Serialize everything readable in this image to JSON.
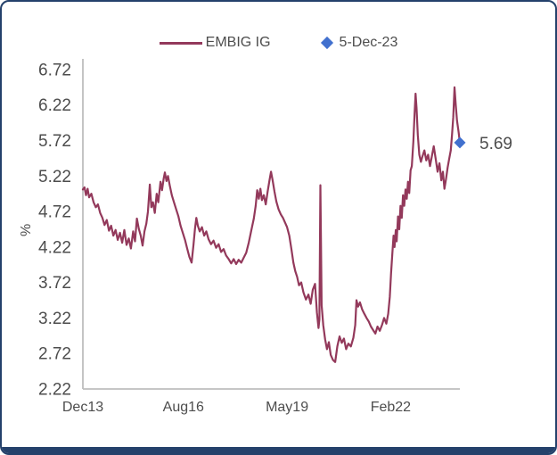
{
  "frame": {
    "border_color": "#24416B",
    "bottom_bar_color": "#24416B"
  },
  "legend": {
    "items": [
      {
        "label": "EMBIG IG",
        "swatch": "line",
        "color": "#93395B"
      },
      {
        "label": "5-Dec-23",
        "swatch": "diamond",
        "color": "#4170CE"
      }
    ]
  },
  "colors": {
    "series_line": "#93395B",
    "marker_diamond": "#4170CE",
    "axis_line": "#BEBEBE",
    "tick_text": "#4d4d4d"
  },
  "chart_data": {
    "type": "line",
    "title": "",
    "xlabel": "",
    "ylabel": "%",
    "legend_position": "top-center",
    "grid": false,
    "axis": {
      "y_min": 2.22,
      "y_max": 6.87,
      "x_min_month": 0,
      "x_max_month": 120
    },
    "y_ticks": [
      {
        "value": 6.72,
        "label": "6.72"
      },
      {
        "value": 6.22,
        "label": "6.22"
      },
      {
        "value": 5.72,
        "label": "5.72"
      },
      {
        "value": 5.22,
        "label": "5.22"
      },
      {
        "value": 4.72,
        "label": "4.72"
      },
      {
        "value": 4.22,
        "label": "4.22"
      },
      {
        "value": 3.72,
        "label": "3.72"
      },
      {
        "value": 3.22,
        "label": "3.22"
      },
      {
        "value": 2.72,
        "label": "2.72"
      },
      {
        "value": 2.22,
        "label": "2.22"
      }
    ],
    "x_ticks": [
      {
        "month": 0,
        "label": "Dec13"
      },
      {
        "month": 32,
        "label": "Aug16"
      },
      {
        "month": 65,
        "label": "May19"
      },
      {
        "month": 98,
        "label": "Feb22"
      }
    ],
    "series": [
      {
        "name": "EMBIG IG",
        "unit": "%",
        "color": "#93395B",
        "x_unit": "months_since_Dec13",
        "points": [
          [
            0,
            5.03
          ],
          [
            0.5,
            5.06
          ],
          [
            1,
            4.95
          ],
          [
            1.5,
            5.04
          ],
          [
            2,
            4.92
          ],
          [
            2.7,
            4.97
          ],
          [
            3.4,
            4.85
          ],
          [
            4.1,
            4.78
          ],
          [
            4.8,
            4.82
          ],
          [
            5.5,
            4.7
          ],
          [
            6.2,
            4.63
          ],
          [
            6.9,
            4.53
          ],
          [
            7.6,
            4.6
          ],
          [
            8.3,
            4.45
          ],
          [
            9,
            4.52
          ],
          [
            9.7,
            4.38
          ],
          [
            10.4,
            4.46
          ],
          [
            11.1,
            4.32
          ],
          [
            11.8,
            4.42
          ],
          [
            12.5,
            4.28
          ],
          [
            13.2,
            4.46
          ],
          [
            13.9,
            4.25
          ],
          [
            14.6,
            4.34
          ],
          [
            15.3,
            4.2
          ],
          [
            16,
            4.44
          ],
          [
            16.6,
            4.3
          ],
          [
            17.2,
            4.62
          ],
          [
            17.8,
            4.48
          ],
          [
            18.4,
            4.38
          ],
          [
            19,
            4.24
          ],
          [
            19.6,
            4.44
          ],
          [
            20.2,
            4.55
          ],
          [
            20.7,
            4.72
          ],
          [
            21.3,
            5.1
          ],
          [
            21.8,
            4.78
          ],
          [
            22.3,
            4.85
          ],
          [
            22.9,
            4.7
          ],
          [
            23.5,
            4.97
          ],
          [
            24,
            4.85
          ],
          [
            24.7,
            5.14
          ],
          [
            25.2,
            5.02
          ],
          [
            25.7,
            5.18
          ],
          [
            26.1,
            5.27
          ],
          [
            26.6,
            5.15
          ],
          [
            27.1,
            5.22
          ],
          [
            27.7,
            5.08
          ],
          [
            28.3,
            4.95
          ],
          [
            29,
            4.85
          ],
          [
            29.7,
            4.75
          ],
          [
            30.4,
            4.65
          ],
          [
            31.1,
            4.52
          ],
          [
            31.8,
            4.42
          ],
          [
            32.5,
            4.32
          ],
          [
            33.2,
            4.2
          ],
          [
            33.9,
            4.08
          ],
          [
            34.6,
            4.0
          ],
          [
            35.2,
            4.25
          ],
          [
            35.7,
            4.48
          ],
          [
            36.1,
            4.63
          ],
          [
            36.6,
            4.52
          ],
          [
            37.2,
            4.44
          ],
          [
            37.9,
            4.5
          ],
          [
            38.6,
            4.38
          ],
          [
            39.3,
            4.44
          ],
          [
            40,
            4.33
          ],
          [
            40.8,
            4.26
          ],
          [
            41.6,
            4.31
          ],
          [
            42.4,
            4.21
          ],
          [
            43.2,
            4.26
          ],
          [
            44,
            4.15
          ],
          [
            44.8,
            4.19
          ],
          [
            45.6,
            4.1
          ],
          [
            46.4,
            4.05
          ],
          [
            47.2,
            3.99
          ],
          [
            48,
            4.05
          ],
          [
            48.8,
            3.98
          ],
          [
            49.6,
            4.04
          ],
          [
            50.4,
            4.0
          ],
          [
            51.2,
            4.07
          ],
          [
            52,
            4.14
          ],
          [
            52.8,
            4.28
          ],
          [
            53.6,
            4.45
          ],
          [
            54.4,
            4.62
          ],
          [
            55,
            4.8
          ],
          [
            55.5,
            5.02
          ],
          [
            56,
            4.9
          ],
          [
            56.5,
            5.04
          ],
          [
            57,
            4.88
          ],
          [
            57.6,
            4.95
          ],
          [
            58.2,
            4.82
          ],
          [
            58.8,
            5.0
          ],
          [
            59.4,
            5.16
          ],
          [
            59.9,
            5.28
          ],
          [
            60.4,
            5.16
          ],
          [
            61,
            5.0
          ],
          [
            61.6,
            4.86
          ],
          [
            62.3,
            4.75
          ],
          [
            63,
            4.68
          ],
          [
            63.7,
            4.63
          ],
          [
            64.4,
            4.56
          ],
          [
            65,
            4.5
          ],
          [
            65.7,
            4.38
          ],
          [
            66.4,
            4.18
          ],
          [
            67,
            4.0
          ],
          [
            67.6,
            3.88
          ],
          [
            68.2,
            3.8
          ],
          [
            68.8,
            3.68
          ],
          [
            69.5,
            3.72
          ],
          [
            70.2,
            3.58
          ],
          [
            71,
            3.48
          ],
          [
            71.8,
            3.55
          ],
          [
            72.5,
            3.42
          ],
          [
            73.2,
            3.62
          ],
          [
            73.9,
            3.7
          ],
          [
            74.5,
            3.3
          ],
          [
            75,
            3.08
          ],
          [
            75.3,
            3.2
          ],
          [
            75.6,
            5.09
          ],
          [
            76,
            3.4
          ],
          [
            76.5,
            3.12
          ],
          [
            77.1,
            2.92
          ],
          [
            77.7,
            2.78
          ],
          [
            78.3,
            2.88
          ],
          [
            78.9,
            2.7
          ],
          [
            79.6,
            2.63
          ],
          [
            80.3,
            2.6
          ],
          [
            81,
            2.82
          ],
          [
            81.7,
            2.96
          ],
          [
            82.4,
            2.87
          ],
          [
            83.1,
            2.93
          ],
          [
            83.8,
            2.78
          ],
          [
            84.5,
            2.86
          ],
          [
            85.3,
            2.82
          ],
          [
            86.1,
            2.94
          ],
          [
            86.7,
            3.12
          ],
          [
            87.1,
            3.47
          ],
          [
            87.6,
            3.38
          ],
          [
            88.2,
            3.44
          ],
          [
            88.9,
            3.34
          ],
          [
            89.6,
            3.28
          ],
          [
            90.3,
            3.22
          ],
          [
            91,
            3.17
          ],
          [
            91.7,
            3.1
          ],
          [
            92.4,
            3.05
          ],
          [
            93.1,
            3.0
          ],
          [
            93.8,
            3.1
          ],
          [
            94.5,
            3.04
          ],
          [
            95.2,
            3.12
          ],
          [
            95.9,
            3.22
          ],
          [
            96.6,
            3.14
          ],
          [
            97.2,
            3.28
          ],
          [
            97.7,
            3.52
          ],
          [
            98.1,
            3.85
          ],
          [
            98.5,
            4.12
          ],
          [
            98.9,
            4.38
          ],
          [
            99.2,
            4.22
          ],
          [
            99.6,
            4.46
          ],
          [
            99.9,
            4.3
          ],
          [
            100.3,
            4.65
          ],
          [
            100.7,
            4.47
          ],
          [
            101.1,
            4.8
          ],
          [
            101.5,
            4.63
          ],
          [
            101.9,
            4.95
          ],
          [
            102.3,
            4.8
          ],
          [
            102.7,
            5.03
          ],
          [
            103.1,
            4.9
          ],
          [
            103.5,
            5.14
          ],
          [
            103.9,
            4.98
          ],
          [
            104.3,
            5.3
          ],
          [
            104.7,
            5.36
          ],
          [
            105.2,
            5.7
          ],
          [
            105.6,
            6.1
          ],
          [
            105.9,
            6.38
          ],
          [
            106.2,
            6.18
          ],
          [
            106.6,
            5.8
          ],
          [
            107.1,
            5.52
          ],
          [
            107.6,
            5.42
          ],
          [
            108.1,
            5.5
          ],
          [
            108.7,
            5.58
          ],
          [
            109.3,
            5.44
          ],
          [
            109.9,
            5.52
          ],
          [
            110.5,
            5.36
          ],
          [
            111.1,
            5.5
          ],
          [
            111.7,
            5.64
          ],
          [
            112.3,
            5.46
          ],
          [
            112.9,
            5.28
          ],
          [
            113.5,
            5.4
          ],
          [
            114.1,
            5.16
          ],
          [
            114.6,
            5.28
          ],
          [
            115.1,
            5.04
          ],
          [
            115.6,
            5.18
          ],
          [
            116.1,
            5.34
          ],
          [
            116.6,
            5.46
          ],
          [
            117.1,
            5.58
          ],
          [
            117.5,
            5.8
          ],
          [
            117.9,
            6.05
          ],
          [
            118.3,
            6.47
          ],
          [
            118.7,
            6.22
          ],
          [
            119.1,
            6.0
          ],
          [
            119.6,
            5.84
          ],
          [
            120,
            5.69
          ]
        ]
      }
    ],
    "marker": {
      "name": "5-Dec-23",
      "month": 120,
      "value": 5.69,
      "label": "5.69",
      "color": "#4170CE"
    }
  }
}
